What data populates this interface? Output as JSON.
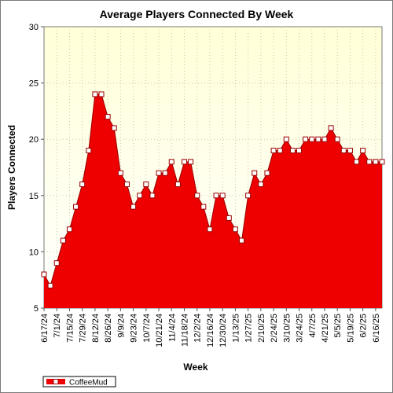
{
  "chart_data": {
    "type": "area",
    "title": "Average Players Connected By Week",
    "xlabel": "Week",
    "ylabel": "Players Connected",
    "ylim": [
      5,
      30
    ],
    "yticks": [
      5,
      10,
      15,
      20,
      25,
      30
    ],
    "grid": true,
    "legend_position": "bottom-left",
    "colors": {
      "fill": "#ee0000",
      "line": "#990000",
      "marker_fill": "#ffffff",
      "plot_bg_top": "#ffffd8",
      "plot_bg_bottom": "#ffffff"
    },
    "x_tick_labels": [
      "6/17/24",
      "7/1/24",
      "7/15/24",
      "7/29/24",
      "8/12/24",
      "8/26/24",
      "9/9/24",
      "9/23/24",
      "10/7/24",
      "10/21/24",
      "11/4/24",
      "11/18/24",
      "12/2/24",
      "12/16/24",
      "12/30/24",
      "1/13/25",
      "1/27/25",
      "2/10/25",
      "2/24/25",
      "3/10/25",
      "3/24/25",
      "4/7/25",
      "4/21/25",
      "5/5/25",
      "5/19/25",
      "6/2/25",
      "6/16/25"
    ],
    "series": [
      {
        "name": "CoffeeMud",
        "x": [
          "6/17/24",
          "6/24/24",
          "7/1/24",
          "7/8/24",
          "7/15/24",
          "7/22/24",
          "7/29/24",
          "8/5/24",
          "8/12/24",
          "8/19/24",
          "8/26/24",
          "9/2/24",
          "9/9/24",
          "9/16/24",
          "9/23/24",
          "9/30/24",
          "10/7/24",
          "10/14/24",
          "10/21/24",
          "10/28/24",
          "11/4/24",
          "11/11/24",
          "11/18/24",
          "11/25/24",
          "12/2/24",
          "12/9/24",
          "12/16/24",
          "12/23/24",
          "12/30/24",
          "1/6/25",
          "1/13/25",
          "1/20/25",
          "1/27/25",
          "2/3/25",
          "2/10/25",
          "2/17/25",
          "2/24/25",
          "3/3/25",
          "3/10/25",
          "3/17/25",
          "3/24/25",
          "3/31/25",
          "4/7/25",
          "4/14/25",
          "4/21/25",
          "4/28/25",
          "5/5/25",
          "5/12/25",
          "5/19/25",
          "5/26/25",
          "6/2/25",
          "6/9/25",
          "6/16/25",
          "6/23/25"
        ],
        "values": [
          8,
          7,
          9,
          11,
          12,
          14,
          16,
          19,
          24,
          24,
          22,
          21,
          17,
          16,
          14,
          15,
          16,
          15,
          17,
          17,
          18,
          16,
          18,
          18,
          15,
          14,
          12,
          15,
          15,
          13,
          12,
          11,
          15,
          17,
          16,
          17,
          19,
          19,
          20,
          19,
          19,
          20,
          20,
          20,
          20,
          21,
          20,
          19,
          19,
          18,
          19,
          18,
          18,
          18
        ]
      }
    ]
  }
}
